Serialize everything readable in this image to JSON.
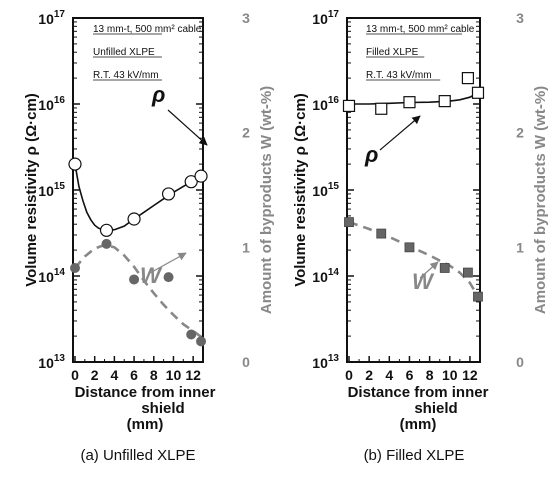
{
  "chart_data": [
    {
      "type": "scatter",
      "panel_caption": "(a)  Unfilled XLPE",
      "annotation_lines": [
        "13 mm-t, 500 mm² cable",
        "Unfilled XLPE",
        "R.T.  43 kV/mm"
      ],
      "xlabel_line1": "Distance from inner",
      "xlabel_line2": "shield",
      "xlabel_line3": "(mm)",
      "ylabel_left": "Volume resistivity ρ  (Ω·cm)",
      "ylabel_right": "Amount of byproducts W (wt-%)",
      "xlim": [
        0,
        13
      ],
      "xticks": [
        "0",
        "2",
        "4",
        "6",
        "8",
        "10",
        "12"
      ],
      "ylim_left": [
        10000000000000.0,
        1e+17
      ],
      "yscale_left": "log",
      "yticks_left": [
        {
          "base": "10",
          "exp": "13"
        },
        {
          "base": "10",
          "exp": "14"
        },
        {
          "base": "10",
          "exp": "15"
        },
        {
          "base": "10",
          "exp": "16"
        },
        {
          "base": "10",
          "exp": "17"
        }
      ],
      "ylim_right": [
        0,
        3
      ],
      "yticks_right": [
        "0",
        "1",
        "2",
        "3"
      ],
      "series": [
        {
          "name": "ρ",
          "marker": "open-circle",
          "axis": "left",
          "x": [
            0,
            3.2,
            6.0,
            9.5,
            11.8,
            12.8
          ],
          "y": [
            2000000000000000.0,
            340000000000000.0,
            460000000000000.0,
            900000000000000.0,
            1250000000000000.0,
            1450000000000000.0
          ],
          "fit_x": [
            0,
            0.4,
            0.8,
            1.2,
            1.6,
            2.0,
            2.4,
            2.8,
            3.2,
            4.0,
            5.0,
            6.0,
            7.0,
            8.0,
            9.0,
            10.0,
            11.0,
            12.0,
            12.8
          ],
          "fit_y": [
            2000000000000000.0,
            1100000000000000.0,
            750000000000000.0,
            550000000000000.0,
            450000000000000.0,
            390000000000000.0,
            360000000000000.0,
            345000000000000.0,
            340000000000000.0,
            345000000000000.0,
            380000000000000.0,
            460000000000000.0,
            550000000000000.0,
            660000000000000.0,
            790000000000000.0,
            940000000000000.0,
            1100000000000000.0,
            1280000000000000.0,
            1450000000000000.0
          ]
        },
        {
          "name": "W",
          "marker": "filled-circle",
          "axis": "right",
          "x": [
            0,
            3.2,
            6.0,
            9.5,
            11.8,
            12.8
          ],
          "y": [
            0.82,
            1.03,
            0.72,
            0.74,
            0.24,
            0.18
          ],
          "fit_x": [
            0,
            1.0,
            2.0,
            3.0,
            4.0,
            5.0,
            6.0,
            7.0,
            8.0,
            9.0,
            10.0,
            11.0,
            12.0,
            12.8
          ],
          "fit_y": [
            0.82,
            0.92,
            0.99,
            1.02,
            1.0,
            0.93,
            0.83,
            0.71,
            0.6,
            0.5,
            0.41,
            0.33,
            0.27,
            0.22
          ]
        }
      ],
      "curve_labels": {
        "rho": "ρ",
        "w": "W"
      },
      "colors": {
        "rho": "#111111",
        "w": "#888888",
        "w_marker": "#666666"
      }
    },
    {
      "type": "scatter",
      "panel_caption": "(b)  Filled XLPE",
      "annotation_lines": [
        "13 mm-t, 500 mm² cable",
        "Filled XLPE",
        "R.T.  43 kV/mm"
      ],
      "xlabel_line1": "Distance from inner",
      "xlabel_line2": "shield",
      "xlabel_line3": "(mm)",
      "ylabel_left": "Volume resistivity ρ  (Ω·cm)",
      "ylabel_right": "Amount of byproducts W (wt-%)",
      "xlim": [
        0,
        13
      ],
      "xticks": [
        "0",
        "2",
        "4",
        "6",
        "8",
        "10",
        "12"
      ],
      "ylim_left": [
        10000000000000.0,
        1e+17
      ],
      "yscale_left": "log",
      "yticks_left": [
        {
          "base": "10",
          "exp": "13"
        },
        {
          "base": "10",
          "exp": "14"
        },
        {
          "base": "10",
          "exp": "15"
        },
        {
          "base": "10",
          "exp": "16"
        },
        {
          "base": "10",
          "exp": "17"
        }
      ],
      "ylim_right": [
        0,
        3
      ],
      "yticks_right": [
        "0",
        "1",
        "2",
        "3"
      ],
      "series": [
        {
          "name": "ρ",
          "marker": "open-square",
          "axis": "left",
          "x": [
            0,
            3.2,
            6.0,
            9.5,
            11.8,
            12.8
          ],
          "y": [
            9500000000000000.0,
            8800000000000000.0,
            1.05e+16,
            1.08e+16,
            2e+16,
            1.35e+16
          ],
          "fit_x": [
            0,
            2.0,
            4.0,
            6.0,
            8.0,
            10.0,
            11.0,
            12.0,
            12.8
          ],
          "fit_y": [
            1e+16,
            1e+16,
            1.02e+16,
            1.04e+16,
            1.05e+16,
            1.08e+16,
            1.12e+16,
            1.2e+16,
            1.35e+16
          ]
        },
        {
          "name": "W",
          "marker": "filled-square",
          "axis": "right",
          "x": [
            0,
            3.2,
            6.0,
            9.5,
            11.8,
            12.8
          ],
          "y": [
            1.22,
            1.12,
            1.0,
            0.82,
            0.78,
            0.57
          ],
          "fit_x": [
            0,
            2.0,
            4.0,
            6.0,
            8.0,
            10.0,
            11.0,
            12.0,
            12.8
          ],
          "fit_y": [
            1.22,
            1.16,
            1.09,
            1.01,
            0.93,
            0.84,
            0.78,
            0.69,
            0.57
          ]
        }
      ],
      "curve_labels": {
        "rho": "ρ",
        "w": "W"
      },
      "colors": {
        "rho": "#111111",
        "w": "#888888",
        "w_marker": "#666666"
      }
    }
  ]
}
